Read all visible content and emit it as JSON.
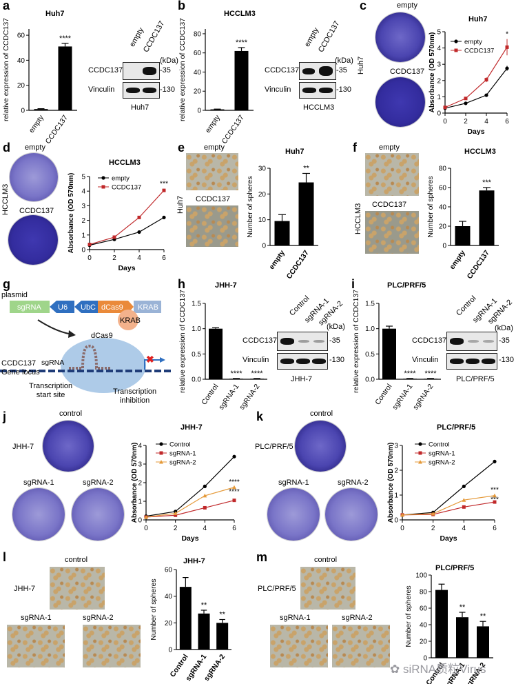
{
  "panel_labels": {
    "a": "a",
    "b": "b",
    "c": "c",
    "d": "d",
    "e": "e",
    "f": "f",
    "g": "g",
    "h": "h",
    "i": "i",
    "j": "j",
    "k": "k",
    "l": "l",
    "m": "m"
  },
  "a": {
    "title": "Huh7",
    "ylabel": "relative expression of CCDC137",
    "xcats": [
      "empty",
      "CCDC137"
    ],
    "sig": "****",
    "blot_cols": [
      "empty",
      "CCDC137"
    ],
    "kda": "(kDa)",
    "rows": [
      "CCDC137",
      "Vinculin"
    ],
    "sizes": [
      "-35",
      "-130"
    ],
    "blot_caption": "Huh7",
    "yticks": [
      "0",
      "20",
      "40",
      "60"
    ]
  },
  "b": {
    "title": "HCCLM3",
    "ylabel": "relative expression of CCDC137",
    "xcats": [
      "empty",
      "CCDC137"
    ],
    "sig": "****",
    "blot_cols": [
      "empty",
      "CCDC137"
    ],
    "kda": "(kDa)",
    "rows": [
      "CCDC137",
      "Vinculin"
    ],
    "sizes": [
      "-35",
      "-130"
    ],
    "blot_caption": "HCCLM3",
    "yticks": [
      "0",
      "20",
      "40",
      "60",
      "80"
    ]
  },
  "c": {
    "dish_labels": [
      "empty",
      "CCDC137"
    ],
    "side": "Huh7",
    "title": "Huh7",
    "ylabel": "Absorbance (OD 570nm)",
    "xlabel": "Days",
    "legend": [
      "empty",
      "CCDC137"
    ],
    "sig": "*",
    "yticks": [
      "0",
      "1",
      "2",
      "3",
      "4",
      "5"
    ],
    "xticks": [
      "0",
      "2",
      "4",
      "6"
    ]
  },
  "d": {
    "dish_labels": [
      "empty",
      "CCDC137"
    ],
    "side": "HCCLM3",
    "title": "HCCLM3",
    "ylabel": "Absorbance (OD 570nm)",
    "xlabel": "Days",
    "legend": [
      "empty",
      "CCDC137"
    ],
    "sig": "***",
    "yticks": [
      "0",
      "1",
      "2",
      "3",
      "4",
      "5"
    ],
    "xticks": [
      "0",
      "2",
      "4",
      "6"
    ]
  },
  "e": {
    "img_labels": [
      "empty",
      "CCDC137"
    ],
    "side": "Huh7",
    "title": "Huh7",
    "ylabel": "Number of spheres",
    "xcats": [
      "empty",
      "CCDC137"
    ],
    "sig": "**",
    "yticks": [
      "0",
      "10",
      "20",
      "30"
    ]
  },
  "f": {
    "img_labels": [
      "empty",
      "CCDC137"
    ],
    "side": "HCCLM3",
    "title": "HCCLM3",
    "ylabel": "Number of spheres",
    "xcats": [
      "empty",
      "CCDC137"
    ],
    "sig": "***",
    "yticks": [
      "0",
      "20",
      "40",
      "60",
      "80"
    ]
  },
  "g": {
    "plasmid": "plasmid",
    "boxes": [
      "sgRNA",
      "U6",
      "UbC",
      "dCas9",
      "KRAB"
    ],
    "dcas9": "dCas9",
    "krab": "KRAB",
    "sgrna": "sgRNA",
    "locus": "CCDC137\nGene locus",
    "tss": "Transcription\nstart site",
    "inhib": "Transcription\ninhibition"
  },
  "h": {
    "title": "JHH-7",
    "ylabel": "relative expression of CCDC137",
    "xcats": [
      "Control",
      "sgRNA-1",
      "sgRNA-2"
    ],
    "sig": [
      "****",
      "****"
    ],
    "blot_cols": [
      "Control",
      "sgRNA-1",
      "sgRNA-2"
    ],
    "kda": "(kDa)",
    "rows": [
      "CCDC137",
      "Vinculin"
    ],
    "sizes": [
      "-35",
      "-130"
    ],
    "blot_caption": "JHH-7",
    "yticks": [
      "0.0",
      "0.5",
      "1.0",
      "1.5"
    ]
  },
  "i": {
    "title": "PLC/PRF/5",
    "ylabel": "relative expression of CCDC137",
    "xcats": [
      "Control",
      "sgRNA-1",
      "sgRNA-2"
    ],
    "sig": [
      "****",
      "****"
    ],
    "blot_cols": [
      "Control",
      "sgRNA-1",
      "sgRNA-2"
    ],
    "kda": "(kDa)",
    "rows": [
      "CCDC137",
      "Vinculin"
    ],
    "sizes": [
      "-35",
      "-130"
    ],
    "blot_caption": "PLC/PRF/5",
    "yticks": [
      "0.0",
      "0.5",
      "1.0",
      "1.5"
    ]
  },
  "j": {
    "dish_labels": [
      "control",
      "sgRNA-1",
      "sgRNA-2"
    ],
    "side": "JHH-7",
    "title": "JHH-7",
    "ylabel": "Absorbance (OD 570nm)",
    "xlabel": "Days",
    "legend": [
      "Control",
      "sgRNA-1",
      "sgRNA-2"
    ],
    "sig": [
      "****",
      "****"
    ],
    "yticks": [
      "0",
      "1",
      "2",
      "3",
      "4"
    ],
    "xticks": [
      "0",
      "2",
      "4",
      "6"
    ]
  },
  "k": {
    "dish_labels": [
      "control",
      "sgRNA-1",
      "sgRNA-2"
    ],
    "side": "PLC/PRF/5",
    "title": "PLC/PRF/5",
    "ylabel": "Absorbance (OD 570nm)",
    "xlabel": "Days",
    "legend": [
      "Control",
      "sgRNA-1",
      "sgRNA-2"
    ],
    "sig": [
      "***",
      "***"
    ],
    "yticks": [
      "0",
      "1",
      "2",
      "3"
    ],
    "xticks": [
      "0",
      "2",
      "4",
      "6"
    ]
  },
  "l": {
    "img_labels": [
      "control",
      "sgRNA-1",
      "sgRNA-2"
    ],
    "side": "JHH-7",
    "title": "JHH-7",
    "ylabel": "Number of spheres",
    "xcats": [
      "Control",
      "sgRNA-1",
      "sgRNA-2"
    ],
    "sig": [
      "**",
      "**"
    ],
    "yticks": [
      "0",
      "20",
      "40",
      "60"
    ]
  },
  "m": {
    "img_labels": [
      "control",
      "sgRNA-1",
      "sgRNA-2"
    ],
    "side": "PLC/PRF/5",
    "title": "PLC/PRF/5",
    "ylabel": "Number of spheres",
    "xcats": [
      "Control",
      "sgRNA-1",
      "sgRNA-2"
    ],
    "sig": [
      "**",
      "**"
    ],
    "yticks": [
      "0",
      "20",
      "40",
      "60",
      "80",
      "100"
    ]
  },
  "watermark": "siRNA质粒Virus",
  "colors": {
    "black": "#000000",
    "red": "#c0282a",
    "orange": "#e59a3a",
    "dish": "#4b45b0"
  },
  "chart_data": [
    {
      "id": "a",
      "type": "bar",
      "categories": [
        "empty",
        "CCDC137"
      ],
      "values": [
        1,
        51
      ],
      "errors": [
        0.3,
        2.5
      ],
      "title": "Huh7",
      "ylabel": "relative expression of CCDC137",
      "ylim": [
        0,
        65
      ]
    },
    {
      "id": "b",
      "type": "bar",
      "categories": [
        "empty",
        "CCDC137"
      ],
      "values": [
        1,
        62
      ],
      "errors": [
        0.3,
        3.5
      ],
      "title": "HCCLM3",
      "ylabel": "relative expression of CCDC137",
      "ylim": [
        0,
        85
      ]
    },
    {
      "id": "c",
      "type": "line",
      "x": [
        0,
        2,
        4,
        6
      ],
      "series": [
        {
          "name": "empty",
          "values": [
            0.3,
            0.6,
            1.1,
            2.75
          ],
          "errors": [
            0.05,
            0.05,
            0.1,
            0.15
          ]
        },
        {
          "name": "CCDC137",
          "values": [
            0.35,
            0.9,
            2.05,
            4.05
          ],
          "errors": [
            0.05,
            0.05,
            0.15,
            0.5
          ]
        }
      ],
      "title": "Huh7",
      "xlabel": "Days",
      "ylabel": "Absorbance (OD 570nm)",
      "ylim": [
        0,
        5
      ],
      "xlim": [
        0,
        6
      ]
    },
    {
      "id": "d",
      "type": "line",
      "x": [
        0,
        2,
        4,
        6
      ],
      "series": [
        {
          "name": "empty",
          "values": [
            0.3,
            0.7,
            1.2,
            2.2
          ],
          "errors": [
            0.03,
            0.03,
            0.05,
            0.08
          ]
        },
        {
          "name": "CCDC137",
          "values": [
            0.35,
            0.85,
            2.2,
            4.05
          ],
          "errors": [
            0.03,
            0.05,
            0.08,
            0.12
          ]
        }
      ],
      "title": "HCCLM3",
      "xlabel": "Days",
      "ylabel": "Absorbance (OD 570nm)",
      "ylim": [
        0,
        5
      ],
      "xlim": [
        0,
        6
      ]
    },
    {
      "id": "e",
      "type": "bar",
      "categories": [
        "empty",
        "CCDC137"
      ],
      "values": [
        9.5,
        24.5
      ],
      "errors": [
        2.5,
        3.5
      ],
      "title": "Huh7",
      "ylabel": "Number of spheres",
      "ylim": [
        0,
        30
      ]
    },
    {
      "id": "f",
      "type": "bar",
      "categories": [
        "empty",
        "CCDC137"
      ],
      "values": [
        20,
        57
      ],
      "errors": [
        5,
        3
      ],
      "title": "HCCLM3",
      "ylabel": "Number of spheres",
      "ylim": [
        0,
        80
      ]
    },
    {
      "id": "h",
      "type": "bar",
      "categories": [
        "Control",
        "sgRNA-1",
        "sgRNA-2"
      ],
      "values": [
        1.0,
        0.01,
        0.01
      ],
      "errors": [
        0.02,
        0.005,
        0.005
      ],
      "title": "JHH-7",
      "ylabel": "relative expression of CCDC137",
      "ylim": [
        0,
        1.5
      ]
    },
    {
      "id": "i",
      "type": "bar",
      "categories": [
        "Control",
        "sgRNA-1",
        "sgRNA-2"
      ],
      "values": [
        1.0,
        0.01,
        0.01
      ],
      "errors": [
        0.05,
        0.005,
        0.005
      ],
      "title": "PLC/PRF/5",
      "ylabel": "relative expression of CCDC137",
      "ylim": [
        0,
        1.5
      ]
    },
    {
      "id": "j",
      "type": "line",
      "x": [
        0,
        2,
        4,
        6
      ],
      "series": [
        {
          "name": "Control",
          "values": [
            0.2,
            0.45,
            1.8,
            3.4
          ]
        },
        {
          "name": "sgRNA-1",
          "values": [
            0.15,
            0.25,
            0.65,
            1.05
          ]
        },
        {
          "name": "sgRNA-2",
          "values": [
            0.15,
            0.35,
            1.3,
            1.75
          ]
        }
      ],
      "title": "JHH-7",
      "xlabel": "Days",
      "ylabel": "Absorbance (OD 570nm)",
      "ylim": [
        0,
        4
      ],
      "xlim": [
        0,
        6
      ]
    },
    {
      "id": "k",
      "type": "line",
      "x": [
        0,
        2,
        4,
        6
      ],
      "series": [
        {
          "name": "Control",
          "values": [
            0.2,
            0.3,
            1.35,
            2.35
          ]
        },
        {
          "name": "sgRNA-1",
          "values": [
            0.2,
            0.22,
            0.52,
            0.72
          ]
        },
        {
          "name": "sgRNA-2",
          "values": [
            0.2,
            0.25,
            0.8,
            0.98
          ]
        }
      ],
      "title": "PLC/PRF/5",
      "xlabel": "Days",
      "ylabel": "Absorbance (OD 570nm)",
      "ylim": [
        0,
        3
      ],
      "xlim": [
        0,
        6
      ]
    },
    {
      "id": "l",
      "type": "bar",
      "categories": [
        "Control",
        "sgRNA-1",
        "sgRNA-2"
      ],
      "values": [
        47,
        27,
        20
      ],
      "errors": [
        7,
        2.5,
        2.5
      ],
      "title": "JHH-7",
      "ylabel": "Number of spheres",
      "ylim": [
        0,
        60
      ]
    },
    {
      "id": "m",
      "type": "bar",
      "categories": [
        "Control",
        "sgRNA-1",
        "sgRNA-2"
      ],
      "values": [
        82,
        49,
        38
      ],
      "errors": [
        7,
        6,
        6
      ],
      "title": "PLC/PRF/5",
      "ylabel": "Number of spheres",
      "ylim": [
        0,
        100
      ]
    }
  ]
}
